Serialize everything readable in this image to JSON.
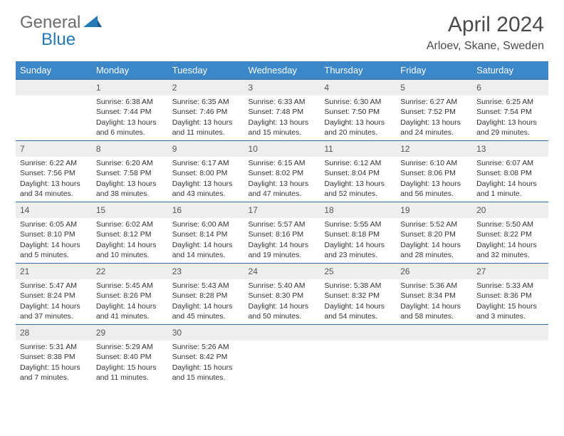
{
  "logo": {
    "text1": "General",
    "text2": "Blue"
  },
  "title": "April 2024",
  "location": "Arloev, Skane, Sweden",
  "colors": {
    "header_bg": "#3b87c8",
    "border": "#2e6da4",
    "daynum_bg": "#eeeeee",
    "text": "#333333",
    "logo_gray": "#6b6b6b",
    "logo_blue": "#2578b6"
  },
  "weekdays": [
    "Sunday",
    "Monday",
    "Tuesday",
    "Wednesday",
    "Thursday",
    "Friday",
    "Saturday"
  ],
  "weeks": [
    [
      null,
      {
        "n": "1",
        "sunrise": "6:38 AM",
        "sunset": "7:44 PM",
        "dl": "13 hours and 6 minutes."
      },
      {
        "n": "2",
        "sunrise": "6:35 AM",
        "sunset": "7:46 PM",
        "dl": "13 hours and 11 minutes."
      },
      {
        "n": "3",
        "sunrise": "6:33 AM",
        "sunset": "7:48 PM",
        "dl": "13 hours and 15 minutes."
      },
      {
        "n": "4",
        "sunrise": "6:30 AM",
        "sunset": "7:50 PM",
        "dl": "13 hours and 20 minutes."
      },
      {
        "n": "5",
        "sunrise": "6:27 AM",
        "sunset": "7:52 PM",
        "dl": "13 hours and 24 minutes."
      },
      {
        "n": "6",
        "sunrise": "6:25 AM",
        "sunset": "7:54 PM",
        "dl": "13 hours and 29 minutes."
      }
    ],
    [
      {
        "n": "7",
        "sunrise": "6:22 AM",
        "sunset": "7:56 PM",
        "dl": "13 hours and 34 minutes."
      },
      {
        "n": "8",
        "sunrise": "6:20 AM",
        "sunset": "7:58 PM",
        "dl": "13 hours and 38 minutes."
      },
      {
        "n": "9",
        "sunrise": "6:17 AM",
        "sunset": "8:00 PM",
        "dl": "13 hours and 43 minutes."
      },
      {
        "n": "10",
        "sunrise": "6:15 AM",
        "sunset": "8:02 PM",
        "dl": "13 hours and 47 minutes."
      },
      {
        "n": "11",
        "sunrise": "6:12 AM",
        "sunset": "8:04 PM",
        "dl": "13 hours and 52 minutes."
      },
      {
        "n": "12",
        "sunrise": "6:10 AM",
        "sunset": "8:06 PM",
        "dl": "13 hours and 56 minutes."
      },
      {
        "n": "13",
        "sunrise": "6:07 AM",
        "sunset": "8:08 PM",
        "dl": "14 hours and 1 minute."
      }
    ],
    [
      {
        "n": "14",
        "sunrise": "6:05 AM",
        "sunset": "8:10 PM",
        "dl": "14 hours and 5 minutes."
      },
      {
        "n": "15",
        "sunrise": "6:02 AM",
        "sunset": "8:12 PM",
        "dl": "14 hours and 10 minutes."
      },
      {
        "n": "16",
        "sunrise": "6:00 AM",
        "sunset": "8:14 PM",
        "dl": "14 hours and 14 minutes."
      },
      {
        "n": "17",
        "sunrise": "5:57 AM",
        "sunset": "8:16 PM",
        "dl": "14 hours and 19 minutes."
      },
      {
        "n": "18",
        "sunrise": "5:55 AM",
        "sunset": "8:18 PM",
        "dl": "14 hours and 23 minutes."
      },
      {
        "n": "19",
        "sunrise": "5:52 AM",
        "sunset": "8:20 PM",
        "dl": "14 hours and 28 minutes."
      },
      {
        "n": "20",
        "sunrise": "5:50 AM",
        "sunset": "8:22 PM",
        "dl": "14 hours and 32 minutes."
      }
    ],
    [
      {
        "n": "21",
        "sunrise": "5:47 AM",
        "sunset": "8:24 PM",
        "dl": "14 hours and 37 minutes."
      },
      {
        "n": "22",
        "sunrise": "5:45 AM",
        "sunset": "8:26 PM",
        "dl": "14 hours and 41 minutes."
      },
      {
        "n": "23",
        "sunrise": "5:43 AM",
        "sunset": "8:28 PM",
        "dl": "14 hours and 45 minutes."
      },
      {
        "n": "24",
        "sunrise": "5:40 AM",
        "sunset": "8:30 PM",
        "dl": "14 hours and 50 minutes."
      },
      {
        "n": "25",
        "sunrise": "5:38 AM",
        "sunset": "8:32 PM",
        "dl": "14 hours and 54 minutes."
      },
      {
        "n": "26",
        "sunrise": "5:36 AM",
        "sunset": "8:34 PM",
        "dl": "14 hours and 58 minutes."
      },
      {
        "n": "27",
        "sunrise": "5:33 AM",
        "sunset": "8:36 PM",
        "dl": "15 hours and 3 minutes."
      }
    ],
    [
      {
        "n": "28",
        "sunrise": "5:31 AM",
        "sunset": "8:38 PM",
        "dl": "15 hours and 7 minutes."
      },
      {
        "n": "29",
        "sunrise": "5:29 AM",
        "sunset": "8:40 PM",
        "dl": "15 hours and 11 minutes."
      },
      {
        "n": "30",
        "sunrise": "5:26 AM",
        "sunset": "8:42 PM",
        "dl": "15 hours and 15 minutes."
      },
      null,
      null,
      null,
      null
    ]
  ],
  "labels": {
    "sunrise": "Sunrise:",
    "sunset": "Sunset:",
    "daylight": "Daylight:"
  }
}
